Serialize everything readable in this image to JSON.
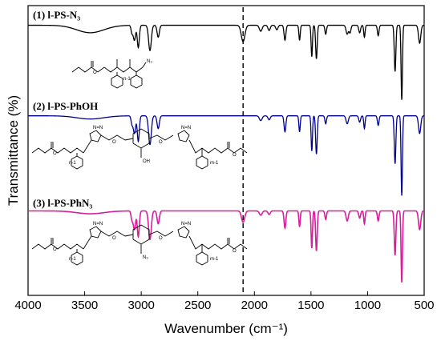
{
  "chart_data": {
    "type": "line",
    "xlabel": "Wavenumber (cm⁻¹)",
    "ylabel": "Transmittance (%)",
    "xlim": [
      4000,
      500
    ],
    "x_reversed": true,
    "xticks": [
      4000,
      3500,
      3000,
      2500,
      2000,
      1500,
      1000,
      500
    ],
    "tick_labels": [
      "4000",
      "3500",
      "3000",
      "2500",
      "2000",
      "1500",
      "1000",
      "500"
    ],
    "reference_line": {
      "x": 2100,
      "style": "dashed"
    },
    "series": [
      {
        "name": "(1) l-PS-N₃",
        "color": "#000000",
        "baseline": 0.92,
        "bands": [
          [
            3450,
            0.1,
            120
          ],
          [
            3082,
            0.1,
            8
          ],
          [
            3060,
            0.2,
            10
          ],
          [
            3026,
            0.3,
            9
          ],
          [
            2923,
            0.34,
            12
          ],
          [
            2850,
            0.16,
            10
          ],
          [
            2100,
            0.22,
            16
          ],
          [
            1944,
            0.08,
            12
          ],
          [
            1870,
            0.07,
            10
          ],
          [
            1802,
            0.06,
            10
          ],
          [
            1730,
            0.2,
            8
          ],
          [
            1601,
            0.2,
            6
          ],
          [
            1493,
            0.42,
            6
          ],
          [
            1452,
            0.45,
            7
          ],
          [
            1370,
            0.12,
            7
          ],
          [
            1180,
            0.12,
            10
          ],
          [
            1155,
            0.1,
            8
          ],
          [
            1070,
            0.1,
            8
          ],
          [
            1028,
            0.16,
            6
          ],
          [
            906,
            0.14,
            7
          ],
          [
            757,
            0.62,
            7
          ],
          [
            698,
            1.0,
            6
          ],
          [
            540,
            0.24,
            10
          ]
        ]
      },
      {
        "name": "(2) l-PS-PhOH",
        "color": "#00008b",
        "baseline": 0.92,
        "bands": [
          [
            3450,
            0.04,
            120
          ],
          [
            3082,
            0.1,
            8
          ],
          [
            3060,
            0.22,
            10
          ],
          [
            3026,
            0.32,
            9
          ],
          [
            2923,
            0.36,
            12
          ],
          [
            2850,
            0.16,
            10
          ],
          [
            1944,
            0.06,
            12
          ],
          [
            1870,
            0.05,
            10
          ],
          [
            1730,
            0.2,
            8
          ],
          [
            1601,
            0.2,
            6
          ],
          [
            1493,
            0.44,
            6
          ],
          [
            1452,
            0.48,
            7
          ],
          [
            1370,
            0.1,
            7
          ],
          [
            1180,
            0.1,
            10
          ],
          [
            1070,
            0.08,
            8
          ],
          [
            1028,
            0.16,
            6
          ],
          [
            906,
            0.12,
            7
          ],
          [
            757,
            0.6,
            7
          ],
          [
            698,
            1.0,
            6
          ],
          [
            540,
            0.22,
            10
          ]
        ]
      },
      {
        "name": "(3) l-PS-PhN₃",
        "color": "#d61f9b",
        "baseline": 0.92,
        "bands": [
          [
            3450,
            0.04,
            120
          ],
          [
            3082,
            0.12,
            8
          ],
          [
            3060,
            0.26,
            10
          ],
          [
            3026,
            0.36,
            9
          ],
          [
            2923,
            0.4,
            12
          ],
          [
            2850,
            0.18,
            10
          ],
          [
            2100,
            0.16,
            14
          ],
          [
            1944,
            0.06,
            12
          ],
          [
            1870,
            0.05,
            10
          ],
          [
            1730,
            0.24,
            8
          ],
          [
            1601,
            0.22,
            6
          ],
          [
            1493,
            0.52,
            6
          ],
          [
            1452,
            0.56,
            7
          ],
          [
            1370,
            0.12,
            7
          ],
          [
            1180,
            0.14,
            10
          ],
          [
            1070,
            0.1,
            8
          ],
          [
            1028,
            0.18,
            6
          ],
          [
            906,
            0.14,
            7
          ],
          [
            757,
            0.62,
            7
          ],
          [
            698,
            1.0,
            6
          ],
          [
            540,
            0.26,
            10
          ]
        ]
      }
    ],
    "structures": [
      {
        "name": "azide-terminated-polystyrene",
        "label": "N₃",
        "repeat_label": "n-1"
      },
      {
        "name": "hydroxyphenyl-bis-triazole-polystyrene",
        "label": "OH",
        "repeat_labels": [
          "n-1",
          "m-1"
        ]
      },
      {
        "name": "azidomethylphenyl-bis-triazole-polystyrene",
        "label": "N₃",
        "repeat_labels": [
          "n-1",
          "m-1"
        ]
      }
    ]
  }
}
